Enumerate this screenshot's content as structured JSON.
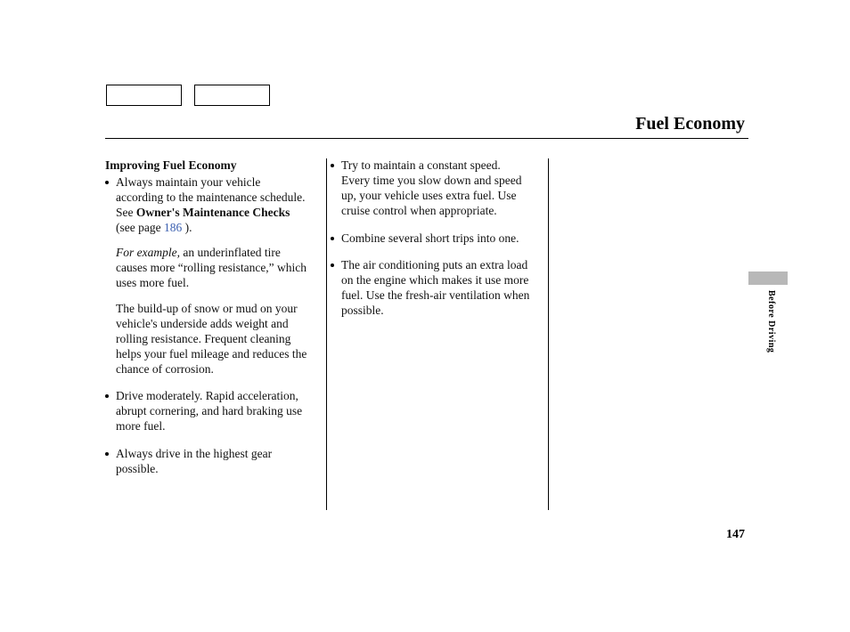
{
  "pageTitle": "Fuel Economy",
  "sectionHeading": "Improving Fuel Economy",
  "col1": {
    "b1_pre": "Always maintain your vehicle according to the maintenance schedule. See ",
    "b1_bold": "Owner's Maintenance Checks",
    "b1_mid": " (see page ",
    "b1_link": "186",
    "b1_post": " ).",
    "b1_ex_lead": "For example,",
    "b1_ex_rest": " an underinflated tire causes more “rolling resistance,” which uses more fuel.",
    "b1_p2": "The build-up of snow or mud on your vehicle's underside adds weight and rolling resistance. Frequent cleaning helps your fuel mileage and reduces the chance of corrosion.",
    "b2": "Drive moderately. Rapid acceleration, abrupt cornering, and hard braking use more fuel.",
    "b3": "Always drive in the highest gear possible."
  },
  "col2": {
    "b1": "Try to maintain a constant speed. Every time you slow down and speed up, your vehicle uses extra fuel. Use cruise control when appropriate.",
    "b2": "Combine several short trips into one.",
    "b3": "The air conditioning puts an extra load on the engine which makes it use more fuel. Use the fresh-air ventilation when possible."
  },
  "sideLabel": "Before Driving",
  "pageNumber": "147",
  "colors": {
    "link": "#3a5fb0",
    "tab": "#b8b8b8"
  }
}
